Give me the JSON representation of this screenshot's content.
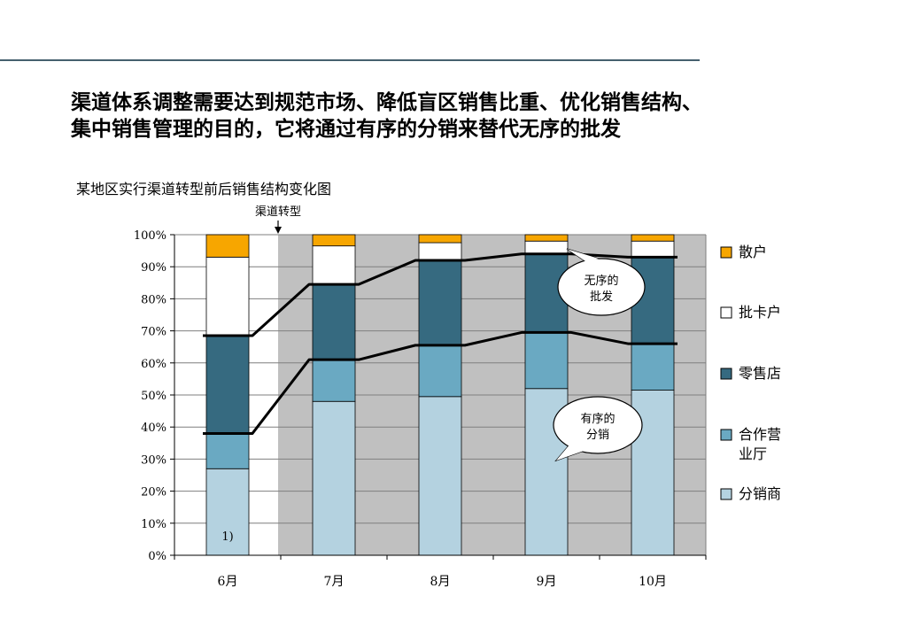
{
  "headline": {
    "line1": "渠道体系调整需要达到规范市场、降低盲区销售比重、优化销售结构、",
    "line2": "集中销售管理的目的，它将通过有序的分销来替代无序的批发"
  },
  "chart_data": {
    "type": "bar",
    "stacked": true,
    "title": "某地区实行渠道转型前后销售结构变化图",
    "categories": [
      "6月",
      "7月",
      "8月",
      "9月",
      "10月"
    ],
    "ylim": [
      0,
      100
    ],
    "yticks": [
      "0%",
      "10%",
      "20%",
      "30%",
      "40%",
      "50%",
      "60%",
      "70%",
      "80%",
      "90%",
      "100%"
    ],
    "grid": true,
    "legend_position": "right",
    "series": [
      {
        "name": "分销商",
        "color": "#b4d2e0",
        "values": [
          27,
          48,
          49.5,
          52,
          51.5
        ]
      },
      {
        "name": "合作营业厅",
        "color": "#6aa9c2",
        "values": [
          11,
          13,
          16,
          17.5,
          14.5
        ]
      },
      {
        "name": "零售店",
        "color": "#366a80",
        "values": [
          30.5,
          23.5,
          26.5,
          24.5,
          27
        ]
      },
      {
        "name": "批卡户",
        "color": "#ffffff",
        "values": [
          24.5,
          12,
          5.5,
          4,
          5
        ]
      },
      {
        "name": "散户",
        "color": "#f7a600",
        "values": [
          7,
          3.5,
          2.5,
          2,
          2
        ]
      }
    ],
    "legend": [
      {
        "label": "散户",
        "color": "#f7a600"
      },
      {
        "label": "批卡户",
        "color": "#ffffff"
      },
      {
        "label": "零售店",
        "color": "#366a80"
      },
      {
        "label": "合作营\n业厅",
        "color": "#6aa9c2"
      },
      {
        "label": "分销商",
        "color": "#b4d2e0"
      }
    ],
    "shaded_region_start_category": 1,
    "shaded_color": "#c0c0c0",
    "annotations": {
      "transition_label": "渠道转型",
      "footnote_label": "1)",
      "callout_wholesale": [
        "无序的",
        "批发"
      ],
      "callout_distribution": [
        "有序的",
        "分销"
      ]
    },
    "trend_lines": {
      "ordered_distribution": [
        38,
        61,
        65.5,
        69.5,
        66
      ],
      "disordered_wholesale": [
        68.5,
        84.5,
        92,
        94,
        93
      ]
    }
  }
}
